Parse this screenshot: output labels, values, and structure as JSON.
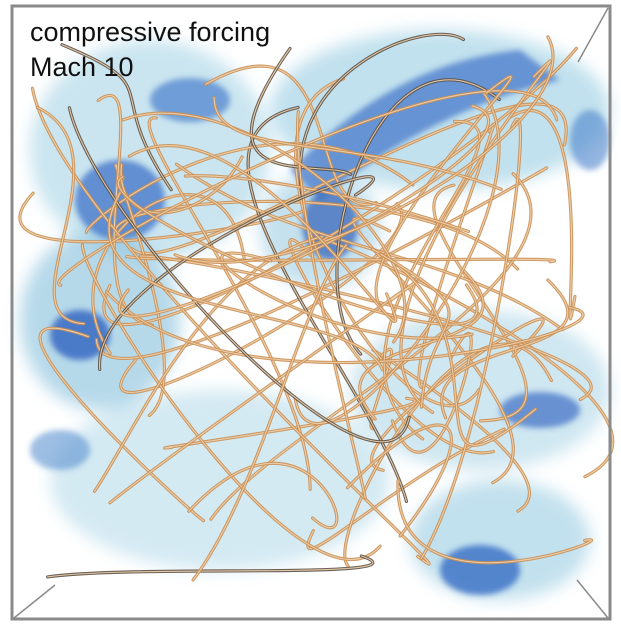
{
  "labels": {
    "line1": "compressive forcing",
    "line2": "Mach 10"
  }
}
